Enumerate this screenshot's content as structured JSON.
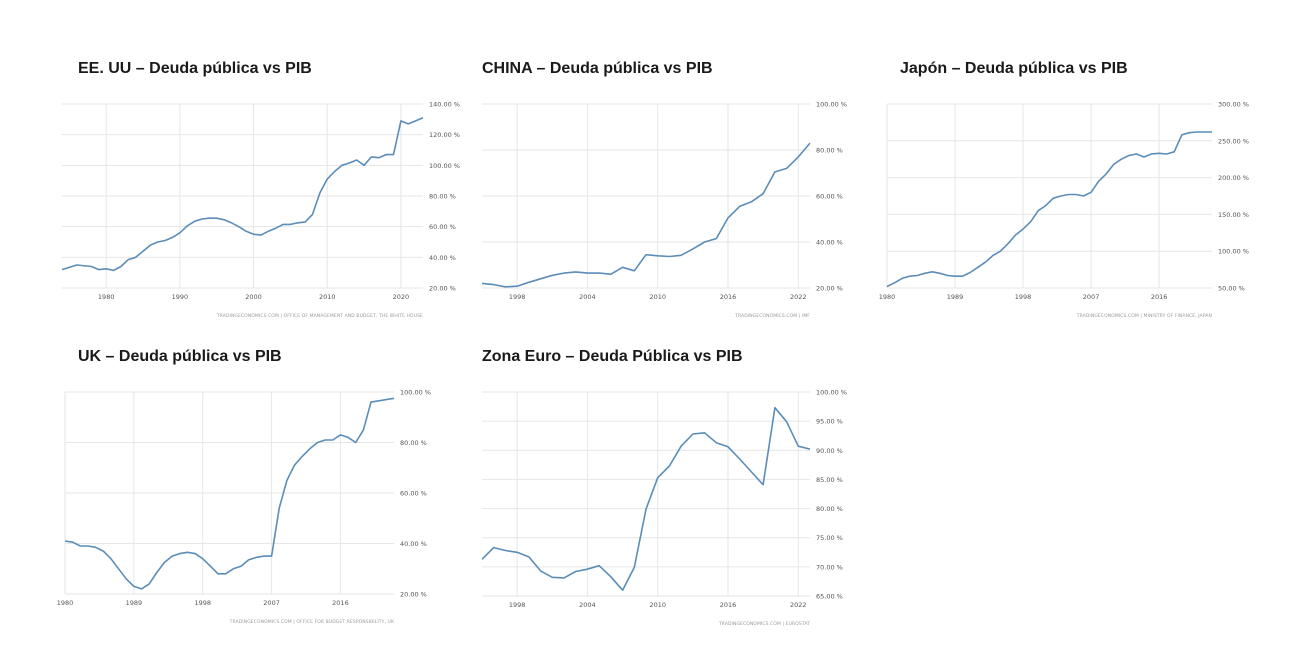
{
  "chart_data": [
    {
      "type": "line",
      "title": "EE. UU – Deuda pública vs PIB",
      "xlim": [
        1974,
        2023
      ],
      "ylim": [
        20,
        140
      ],
      "x_ticks": [
        1980,
        1990,
        2000,
        2010,
        2020
      ],
      "x_tick_labels": [
        "1980",
        "1990",
        "2000",
        "2010",
        "2020"
      ],
      "y_ticks": [
        20,
        40,
        60,
        80,
        100,
        120,
        140
      ],
      "y_tick_labels": [
        "20.00 %",
        "40.00 %",
        "60.00 %",
        "80.00 %",
        "100.00 %",
        "120.00 %",
        "140.00 %"
      ],
      "source": "TRADINGECONOMICS.COM | OFFICE OF MANAGEMENT AND BUDGET, THE WHITE HOUSE",
      "series": [
        {
          "x": [
            1974,
            1976,
            1978,
            1979,
            1980,
            1981,
            1982,
            1983,
            1984,
            1985,
            1986,
            1987,
            1988,
            1989,
            1990,
            1991,
            1992,
            1993,
            1994,
            1995,
            1996,
            1997,
            1998,
            1999,
            2000,
            2001,
            2002,
            2003,
            2004,
            2005,
            2006,
            2007,
            2008,
            2009,
            2010,
            2011,
            2012,
            2013,
            2014,
            2015,
            2016,
            2017,
            2018,
            2019,
            2020,
            2021,
            2022,
            2023
          ],
          "values": [
            32,
            35,
            34,
            32,
            32.5,
            31.5,
            34,
            38.5,
            40,
            44,
            48,
            50,
            51,
            53,
            56,
            60.5,
            63.5,
            65,
            65.5,
            65.5,
            64.5,
            62.5,
            60,
            57,
            55,
            54.5,
            57,
            59,
            61.5,
            61.5,
            62.5,
            63,
            68,
            82,
            91,
            96,
            100,
            101.5,
            103.5,
            100,
            105.5,
            105,
            107,
            107,
            129,
            127,
            129,
            131
          ]
        }
      ]
    },
    {
      "type": "line",
      "title": "CHINA – Deuda pública vs PIB",
      "xlim": [
        1995,
        2023
      ],
      "ylim": [
        20,
        100
      ],
      "x_ticks": [
        1998,
        2004,
        2010,
        2016,
        2022
      ],
      "x_tick_labels": [
        "1998",
        "2004",
        "2010",
        "2016",
        "2022"
      ],
      "y_ticks": [
        20,
        40,
        60,
        80,
        100
      ],
      "y_tick_labels": [
        "20.00 %",
        "40.00 %",
        "60.00 %",
        "80.00 %",
        "100.00 %"
      ],
      "source": "TRADINGECONOMICS.COM | IMF",
      "series": [
        {
          "x": [
            1995,
            1996,
            1997,
            1998,
            1999,
            2000,
            2001,
            2002,
            2003,
            2004,
            2005,
            2006,
            2007,
            2008,
            2009,
            2010,
            2011,
            2012,
            2013,
            2014,
            2015,
            2016,
            2017,
            2018,
            2019,
            2020,
            2021,
            2022,
            2023
          ],
          "values": [
            22,
            21.5,
            20.5,
            20.8,
            22.5,
            24,
            25.5,
            26.5,
            27,
            26.5,
            26.5,
            26,
            29,
            27.5,
            34.5,
            34,
            33.7,
            34.2,
            37,
            40,
            41.5,
            50.5,
            55.5,
            57.5,
            61,
            70.5,
            72,
            77,
            83
          ]
        }
      ]
    },
    {
      "type": "line",
      "title": "Japón – Deuda pública vs PIB",
      "xlim": [
        1980,
        2023
      ],
      "ylim": [
        50,
        300
      ],
      "x_ticks": [
        1980,
        1989,
        1998,
        2007,
        2016
      ],
      "x_tick_labels": [
        "1980",
        "1989",
        "1998",
        "2007",
        "2016"
      ],
      "y_ticks": [
        50,
        100,
        150,
        200,
        250,
        300
      ],
      "y_tick_labels": [
        "50.00 %",
        "100.00 %",
        "150.00 %",
        "200.00 %",
        "250.00 %",
        "300.00 %"
      ],
      "source": "TRADINGECONOMICS.COM | MINISTRY OF FINANCE, JAPAN",
      "series": [
        {
          "x": [
            1980,
            1981,
            1982,
            1983,
            1984,
            1985,
            1986,
            1987,
            1988,
            1989,
            1990,
            1991,
            1992,
            1993,
            1994,
            1995,
            1996,
            1997,
            1998,
            1999,
            2000,
            2001,
            2002,
            2003,
            2004,
            2005,
            2006,
            2007,
            2008,
            2009,
            2010,
            2011,
            2012,
            2013,
            2014,
            2015,
            2016,
            2017,
            2018,
            2019,
            2020,
            2021,
            2022,
            2023
          ],
          "values": [
            52,
            57,
            63,
            66,
            67,
            70,
            72,
            70,
            67,
            66,
            66,
            71,
            78,
            85,
            94,
            100,
            110,
            122,
            130,
            140,
            155,
            162,
            172,
            175,
            177,
            177,
            175,
            180,
            195,
            205,
            218,
            225,
            230,
            232,
            228,
            232,
            233,
            232,
            235,
            258,
            261,
            262,
            262,
            262
          ]
        }
      ]
    },
    {
      "type": "line",
      "title": "UK – Deuda pública vs PIB",
      "xlim": [
        1980,
        2023
      ],
      "ylim": [
        20,
        100
      ],
      "x_ticks": [
        1980,
        1989,
        1998,
        2007,
        2016
      ],
      "x_tick_labels": [
        "1980",
        "1989",
        "1998",
        "2007",
        "2016"
      ],
      "y_ticks": [
        20,
        40,
        60,
        80,
        100
      ],
      "y_tick_labels": [
        "20.00 %",
        "40.00 %",
        "60.00 %",
        "80.00 %",
        "100.00 %"
      ],
      "source": "TRADINGECONOMICS.COM | OFFICE FOR BUDGET RESPONSIBILITY, UK",
      "series": [
        {
          "x": [
            1980,
            1981,
            1982,
            1983,
            1984,
            1985,
            1986,
            1987,
            1988,
            1989,
            1990,
            1991,
            1992,
            1993,
            1994,
            1995,
            1996,
            1997,
            1998,
            1999,
            2000,
            2001,
            2002,
            2003,
            2004,
            2005,
            2006,
            2007,
            2008,
            2009,
            2010,
            2011,
            2012,
            2013,
            2014,
            2015,
            2016,
            2017,
            2018,
            2019,
            2020,
            2021,
            2022,
            2023
          ],
          "values": [
            41,
            40.5,
            39,
            39,
            38.5,
            37,
            34,
            30,
            26,
            23,
            22,
            24,
            28.5,
            32.5,
            35,
            36,
            36.5,
            36,
            34,
            31,
            28,
            28,
            30,
            31,
            33.5,
            34.5,
            35,
            35,
            54,
            65,
            71,
            74.5,
            77.5,
            80,
            81,
            81,
            83,
            82,
            80,
            85,
            96,
            96.5,
            97,
            97.5
          ]
        }
      ]
    },
    {
      "type": "line",
      "title": "Zona Euro  – Deuda Pública vs PIB",
      "xlim": [
        1995,
        2023
      ],
      "ylim": [
        65,
        100
      ],
      "x_ticks": [
        1998,
        2004,
        2010,
        2016,
        2022
      ],
      "x_tick_labels": [
        "1998",
        "2004",
        "2010",
        "2016",
        "2022"
      ],
      "y_ticks": [
        65,
        70,
        75,
        80,
        85,
        90,
        95,
        100
      ],
      "y_tick_labels": [
        "65.00 %",
        "70.00 %",
        "75.00 %",
        "80.00 %",
        "85.00 %",
        "90.00 %",
        "95.00 %",
        "100.00 %"
      ],
      "source": "TRADINGECONOMICS.COM | EUROSTAT",
      "series": [
        {
          "x": [
            1995,
            1996,
            1997,
            1998,
            1999,
            2000,
            2001,
            2002,
            2003,
            2004,
            2005,
            2006,
            2007,
            2008,
            2009,
            2010,
            2011,
            2012,
            2013,
            2014,
            2015,
            2016,
            2017,
            2018,
            2019,
            2020,
            2021,
            2022,
            2023
          ],
          "values": [
            71.3,
            73.3,
            72.8,
            72.5,
            71.7,
            69.3,
            68.2,
            68.1,
            69.2,
            69.6,
            70.2,
            68.3,
            66.0,
            69.9,
            79.9,
            85.3,
            87.3,
            90.7,
            92.8,
            93.0,
            91.3,
            90.6,
            88.5,
            86.3,
            84.1,
            97.3,
            94.9,
            90.7,
            90.2
          ]
        }
      ]
    }
  ]
}
